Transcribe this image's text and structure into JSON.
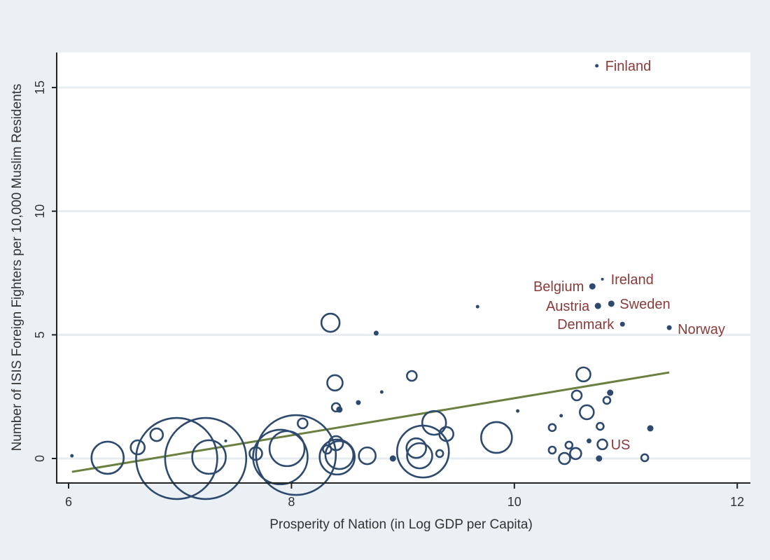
{
  "chart_data": {
    "type": "scatter",
    "title": "",
    "xlabel": "Prosperity of Nation (in Log GDP per Capita)",
    "ylabel": "Number of ISIS Foreign Fighters per 10,000 Muslim Residents",
    "xlim": [
      5.9,
      12.1
    ],
    "ylim": [
      -1,
      16.5
    ],
    "xticks": [
      6,
      8,
      10,
      12
    ],
    "yticks": [
      0,
      5,
      10,
      15
    ],
    "grid": "horizontal",
    "legend": "none",
    "marker": "hollow circle, size weighted",
    "colors": {
      "marker": "#2d4a6e",
      "label": "#8b3a3a",
      "fit": "#6b7f3e",
      "background": "#eaf0f3",
      "plot": "#ffffff",
      "grid": "#e6ecef"
    },
    "fit_line": {
      "x": [
        6.03,
        11.39
      ],
      "y": [
        -0.54,
        3.48
      ]
    },
    "points": [
      {
        "x": 6.03,
        "y": 0.11,
        "w": 0.04
      },
      {
        "x": 6.35,
        "y": 0.03,
        "w": 5.29
      },
      {
        "x": 6.62,
        "y": 0.45,
        "w": 1
      },
      {
        "x": 6.79,
        "y": 0.96,
        "w": 0.81
      },
      {
        "x": 6.97,
        "y": 0,
        "w": 33.6
      },
      {
        "x": 7.23,
        "y": 0,
        "w": 33.6
      },
      {
        "x": 7.26,
        "y": 0.06,
        "w": 5.76
      },
      {
        "x": 7.41,
        "y": 0.71,
        "w": 0.02
      },
      {
        "x": 7.68,
        "y": 0.2,
        "w": 0.81
      },
      {
        "x": 8.04,
        "y": 0.14,
        "w": 32.5
      },
      {
        "x": 7.96,
        "y": 0.4,
        "w": 6.25
      },
      {
        "x": 7.9,
        "y": 0.06,
        "w": 15.2
      },
      {
        "x": 8.1,
        "y": 1.42,
        "w": 0.49
      },
      {
        "x": 8.35,
        "y": 5.49,
        "w": 1.69
      },
      {
        "x": 8.76,
        "y": 5.07,
        "w": 0.09
      },
      {
        "x": 9.67,
        "y": 6.14,
        "w": 0.04
      },
      {
        "x": 8.39,
        "y": 3.06,
        "w": 1.21
      },
      {
        "x": 8.4,
        "y": 2.07,
        "w": 0.36
      },
      {
        "x": 8.43,
        "y": 1.98,
        "w": 0.16
      },
      {
        "x": 8.6,
        "y": 2.26,
        "w": 0.09
      },
      {
        "x": 8.81,
        "y": 2.69,
        "w": 0.04
      },
      {
        "x": 9.08,
        "y": 3.34,
        "w": 0.49
      },
      {
        "x": 8.4,
        "y": 0.62,
        "w": 1
      },
      {
        "x": 8.32,
        "y": 0.37,
        "w": 0.36
      },
      {
        "x": 8.41,
        "y": 0.06,
        "w": 6.25
      },
      {
        "x": 8.43,
        "y": 0.14,
        "w": 4
      },
      {
        "x": 8.68,
        "y": 0.11,
        "w": 1.44
      },
      {
        "x": 8.91,
        "y": 0,
        "w": 0.16
      },
      {
        "x": 9.18,
        "y": 0.28,
        "w": 13.7
      },
      {
        "x": 9.12,
        "y": 0.42,
        "w": 1.96
      },
      {
        "x": 9.15,
        "y": 0.11,
        "w": 3.24
      },
      {
        "x": 9.28,
        "y": 1.44,
        "w": 2.89
      },
      {
        "x": 9.39,
        "y": 0.99,
        "w": 1
      },
      {
        "x": 9.33,
        "y": 0.2,
        "w": 0.25
      },
      {
        "x": 9.84,
        "y": 0.85,
        "w": 4.84
      },
      {
        "x": 10.03,
        "y": 1.92,
        "w": 0.04
      },
      {
        "x": 10.7,
        "y": 6.96,
        "w": 0.16,
        "label": "Belgium",
        "side": "left"
      },
      {
        "x": 10.79,
        "y": 7.25,
        "w": 0.02,
        "label": "Ireland",
        "side": "right"
      },
      {
        "x": 10.75,
        "y": 6.17,
        "w": 0.16,
        "label": "Austria",
        "side": "left"
      },
      {
        "x": 10.87,
        "y": 6.26,
        "w": 0.16,
        "label": "Sweden",
        "side": "right"
      },
      {
        "x": 10.97,
        "y": 5.43,
        "w": 0.09,
        "label": "Denmark",
        "side": "left"
      },
      {
        "x": 11.39,
        "y": 5.29,
        "w": 0.09,
        "label": "Norway",
        "side": "right"
      },
      {
        "x": 10.74,
        "y": 15.88,
        "w": 0.04,
        "label": "Finland",
        "side": "right"
      },
      {
        "x": 10.62,
        "y": 3.4,
        "w": 1
      },
      {
        "x": 10.56,
        "y": 2.55,
        "w": 0.49
      },
      {
        "x": 10.86,
        "y": 2.66,
        "w": 0.16
      },
      {
        "x": 10.83,
        "y": 2.35,
        "w": 0.25
      },
      {
        "x": 10.65,
        "y": 1.87,
        "w": 1
      },
      {
        "x": 10.42,
        "y": 1.73,
        "w": 0.04
      },
      {
        "x": 10.34,
        "y": 1.25,
        "w": 0.25
      },
      {
        "x": 10.77,
        "y": 1.3,
        "w": 0.25
      },
      {
        "x": 11.22,
        "y": 1.22,
        "w": 0.16
      },
      {
        "x": 10.67,
        "y": 0.71,
        "w": 0.09
      },
      {
        "x": 10.79,
        "y": 0.57,
        "w": 0.49,
        "label": "US",
        "side": "right"
      },
      {
        "x": 10.34,
        "y": 0.34,
        "w": 0.25
      },
      {
        "x": 10.49,
        "y": 0.54,
        "w": 0.25
      },
      {
        "x": 10.45,
        "y": 0,
        "w": 0.64
      },
      {
        "x": 10.55,
        "y": 0.2,
        "w": 0.64
      },
      {
        "x": 10.76,
        "y": 0,
        "w": 0.16
      },
      {
        "x": 11.17,
        "y": 0.03,
        "w": 0.25
      }
    ]
  }
}
